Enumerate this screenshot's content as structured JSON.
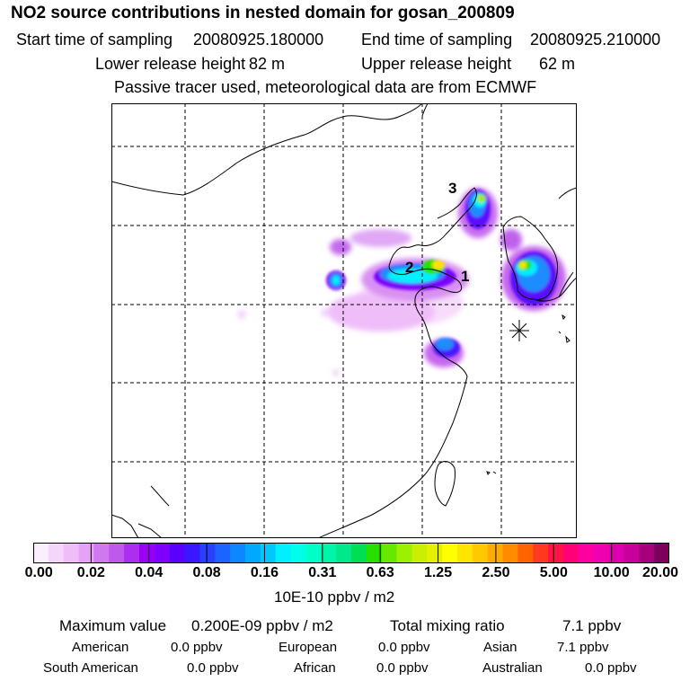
{
  "header": {
    "title": "NO2 source contributions in nested domain for gosan_200809",
    "start_label": "Start time of sampling",
    "start_value": "20080925.180000",
    "end_label": "End time of sampling",
    "end_value": "20080925.210000",
    "lower_label": "Lower release height",
    "lower_value": "82 m",
    "upper_label": "Upper release height",
    "upper_value": "62 m",
    "tracer_note": "Passive tracer used, meteorological data are from ECMWF"
  },
  "map": {
    "source_labels": [
      "1",
      "2",
      "3"
    ],
    "receptor_marker": "receptor-star"
  },
  "colorbar": {
    "ticks": [
      "0.00",
      "0.02",
      "0.04",
      "0.08",
      "0.16",
      "0.31",
      "0.63",
      "1.25",
      "2.50",
      "5.00",
      "10.00",
      "20.00"
    ],
    "colors": [
      "#fbeefd",
      "#f5d6fb",
      "#efbef9",
      "#e6a2f6",
      "#cf79ee",
      "#bf58ec",
      "#ac2ff0",
      "#9b00f6",
      "#7f00ff",
      "#5a00ff",
      "#3a18ff",
      "#2a40ff",
      "#1a64ff",
      "#0d86ff",
      "#00a8ff",
      "#00c8ff",
      "#00f0ff",
      "#00ffe8",
      "#00ffc8",
      "#00f5a8",
      "#00e88c",
      "#00de54",
      "#28e000",
      "#68e800",
      "#9cf000",
      "#c8f000",
      "#e4f000",
      "#ffff00",
      "#ffe400",
      "#ffc800",
      "#ffaa00",
      "#ff8c00",
      "#ff6400",
      "#ff3a1e",
      "#ff1248",
      "#ff0078",
      "#ff00a0",
      "#f000b0",
      "#dc00b0",
      "#c8009c",
      "#a8007c",
      "#7c005c"
    ],
    "unit": "10E-10 ppbv / m2"
  },
  "footer": {
    "max_label": "Maximum value",
    "max_value": "0.200E-09 ppbv / m2",
    "total_label": "Total mixing ratio",
    "total_value": "7.1 ppbv",
    "regions": [
      {
        "name": "American",
        "value": "0.0 ppbv"
      },
      {
        "name": "European",
        "value": "0.0 ppbv"
      },
      {
        "name": "Asian",
        "value": "7.1 ppbv"
      },
      {
        "name": "South American",
        "value": "0.0 ppbv"
      },
      {
        "name": "African",
        "value": "0.0 ppbv"
      },
      {
        "name": "Australian",
        "value": "0.0 ppbv"
      }
    ]
  }
}
